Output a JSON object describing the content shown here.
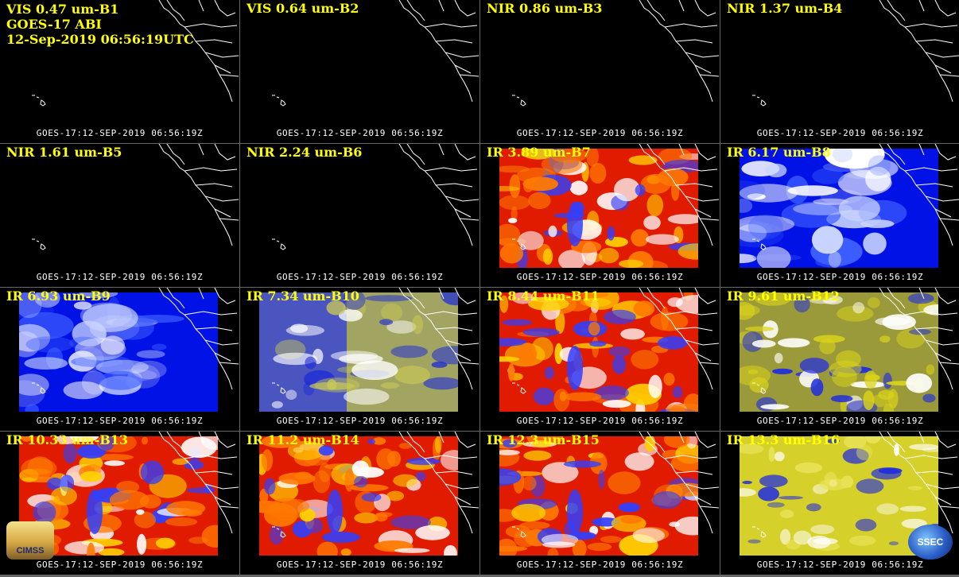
{
  "header": {
    "line1": "VIS 0.47 um-B1",
    "line2": "GOES-17 ABI",
    "line3": "12-Sep-2019 06:56:19UTC"
  },
  "panels": [
    {
      "label": "VIS 0.47 um-B1",
      "footer": "GOES-17:12-SEP-2019 06:56:19Z",
      "palette": "dark"
    },
    {
      "label": "VIS 0.64 um-B2",
      "footer": "GOES-17:12-SEP-2019 06:56:19Z",
      "palette": "dark"
    },
    {
      "label": "NIR 0.86 um-B3",
      "footer": "GOES-17:12-SEP-2019 06:56:19Z",
      "palette": "dark"
    },
    {
      "label": "NIR 1.37 um-B4",
      "footer": "GOES-17:12-SEP-2019 06:56:19Z",
      "palette": "dark"
    },
    {
      "label": "NIR 1.61 um-B5",
      "footer": "GOES-17:12-SEP-2019 06:56:19Z",
      "palette": "dark"
    },
    {
      "label": "NIR 2.24 um-B6",
      "footer": "GOES-17:12-SEP-2019 06:56:19Z",
      "palette": "dark"
    },
    {
      "label": "IR 3.89 um-B7",
      "footer": "GOES-17:12-SEP-2019 06:56:19Z",
      "palette": "red"
    },
    {
      "label": "IR 6.17 um-B8",
      "footer": "GOES-17:12-SEP-2019 06:56:19Z",
      "palette": "bluewhite"
    },
    {
      "label": "IR 6.93 um-B9",
      "footer": "GOES-17:12-SEP-2019 06:56:19Z",
      "palette": "blue"
    },
    {
      "label": "IR 7.34 um-B10",
      "footer": "GOES-17:12-SEP-2019 06:56:19Z",
      "palette": "blueyellow"
    },
    {
      "label": "IR 8.44 um-B11",
      "footer": "GOES-17:12-SEP-2019 06:56:19Z",
      "palette": "red"
    },
    {
      "label": "IR 9.61 um-B12",
      "footer": "GOES-17:12-SEP-2019 06:56:19Z",
      "palette": "olive"
    },
    {
      "label": "IR 10.33 um-B13",
      "footer": "GOES-17:12-SEP-2019 06:56:19Z",
      "palette": "red"
    },
    {
      "label": "IR 11.2 um-B14",
      "footer": "GOES-17:12-SEP-2019 06:56:19Z",
      "palette": "red"
    },
    {
      "label": "IR 12.3 um-B15",
      "footer": "GOES-17:12-SEP-2019 06:56:19Z",
      "palette": "red"
    },
    {
      "label": "IR 13.3 um-B16",
      "footer": "GOES-17:12-SEP-2019 06:56:19Z",
      "palette": "yellow"
    }
  ],
  "logos": {
    "left": {
      "text": "CIMSS",
      "icon": "cimss-logo-icon"
    },
    "right": {
      "text": "SSEC",
      "icon": "ssec-globe-icon"
    }
  },
  "colors": {
    "label_text": "#ffff00",
    "footer_text": "#ffffff",
    "coastline": "#ffffff",
    "red_scale": [
      "#e01b00",
      "#ff7a00",
      "#ffd000",
      "#3040ff",
      "#ffffff"
    ],
    "blue_scale": [
      "#0012e6",
      "#3b5cff",
      "#c9d3ff",
      "#ffffff"
    ],
    "olive_scale": [
      "#d9d21a",
      "#9a9a3a",
      "#1f2ce0",
      "#ffffff"
    ]
  }
}
